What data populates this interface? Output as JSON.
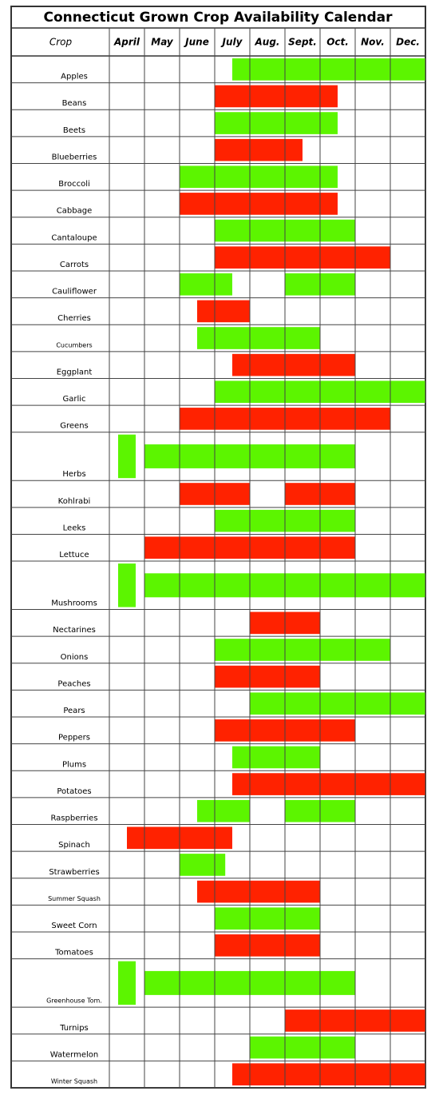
{
  "title": "Connecticut Grown Crop Availability Calendar",
  "header": {
    "crop": "Crop",
    "months": [
      "April",
      "May",
      "June",
      "July",
      "Aug.",
      "Sept.",
      "Oct.",
      "Nov.",
      "Dec."
    ]
  },
  "rows": [
    {
      "name": "Apples",
      "color": "#5cf500",
      "spans": [
        [
          3.5,
          9
        ]
      ]
    },
    {
      "name": "Beans",
      "color": "#ff2200",
      "spans": [
        [
          3,
          6.5
        ]
      ]
    },
    {
      "name": "Beets",
      "color": "#5cf500",
      "spans": [
        [
          3,
          6.5
        ]
      ]
    },
    {
      "name": "Blueberries",
      "color": "#ff2200",
      "spans": [
        [
          3,
          5.5
        ]
      ]
    },
    {
      "name": "Broccoli",
      "color": "#5cf500",
      "spans": [
        [
          2,
          6.5
        ]
      ]
    },
    {
      "name": "Cabbage",
      "color": "#ff2200",
      "spans": [
        [
          2,
          6.5
        ]
      ]
    },
    {
      "name": "Cantaloupe",
      "color": "#5cf500",
      "spans": [
        [
          3,
          7
        ]
      ]
    },
    {
      "name": "Carrots",
      "color": "#ff2200",
      "spans": [
        [
          3,
          8
        ]
      ]
    },
    {
      "name": "Cauliflower",
      "color": "#5cf500",
      "spans": [
        [
          2,
          3.5
        ],
        [
          5,
          7
        ]
      ]
    },
    {
      "name": "Cherries",
      "color": "#ff2200",
      "spans": [
        [
          2.5,
          4
        ]
      ]
    },
    {
      "name": "Cucumbers",
      "color": "#5cf500",
      "spans": [
        [
          2.5,
          6
        ]
      ]
    },
    {
      "name": "Eggplant",
      "color": "#ff2200",
      "spans": [
        [
          3.5,
          7
        ]
      ]
    },
    {
      "name": "Garlic",
      "color": "#5cf500",
      "spans": [
        [
          3,
          9
        ]
      ]
    },
    {
      "name": "Greens",
      "color": "#ff2200",
      "spans": [
        [
          2,
          8
        ]
      ]
    },
    {
      "name": "Herbs",
      "color": "#5cf500",
      "spans": [
        [
          0.25,
          0.75
        ],
        [
          1,
          7
        ]
      ]
    },
    {
      "name": "Kohlrabi",
      "color": "#ff2200",
      "spans": [
        [
          2,
          4
        ],
        [
          5,
          7
        ]
      ]
    },
    {
      "name": "Leeks",
      "color": "#5cf500",
      "spans": [
        [
          3,
          7
        ]
      ]
    },
    {
      "name": "Lettuce",
      "color": "#ff2200",
      "spans": [
        [
          1,
          7
        ]
      ]
    },
    {
      "name": "Mushrooms",
      "color": "#5cf500",
      "spans": [
        [
          0.25,
          0.75
        ],
        [
          1,
          9
        ]
      ]
    },
    {
      "name": "Nectarines",
      "color": "#ff2200",
      "spans": [
        [
          4,
          6
        ]
      ]
    },
    {
      "name": "Onions",
      "color": "#5cf500",
      "spans": [
        [
          3,
          8
        ]
      ]
    },
    {
      "name": "Peaches",
      "color": "#ff2200",
      "spans": [
        [
          3,
          6
        ]
      ]
    },
    {
      "name": "Pears",
      "color": "#5cf500",
      "spans": [
        [
          4,
          9
        ]
      ]
    },
    {
      "name": "Peppers",
      "color": "#ff2200",
      "spans": [
        [
          3,
          7
        ]
      ]
    },
    {
      "name": "Plums",
      "color": "#5cf500",
      "spans": [
        [
          3.5,
          6
        ]
      ]
    },
    {
      "name": "Potatoes",
      "color": "#ff2200",
      "spans": [
        [
          3.5,
          9
        ]
      ]
    },
    {
      "name": "Raspberries",
      "color": "#5cf500",
      "spans": [
        [
          2.5,
          4
        ],
        [
          5,
          7
        ]
      ]
    },
    {
      "name": "Spinach",
      "color": "#ff2200",
      "spans": [
        [
          0.5,
          3.5
        ]
      ]
    },
    {
      "name": "Strawberries",
      "color": "#5cf500",
      "spans": [
        [
          2,
          3.3
        ]
      ]
    },
    {
      "name": "Summer Squash",
      "color": "#ff2200",
      "spans": [
        [
          2.5,
          6
        ]
      ]
    },
    {
      "name": "Sweet Corn",
      "color": "#5cf500",
      "spans": [
        [
          3,
          6
        ]
      ]
    },
    {
      "name": "Tomatoes",
      "color": "#ff2200",
      "spans": [
        [
          3,
          6
        ]
      ]
    },
    {
      "name": "Greenhouse Tom.",
      "color": "#5cf500",
      "spans": [
        [
          0.25,
          0.75
        ],
        [
          1,
          7
        ]
      ]
    },
    {
      "name": "Turnips",
      "color": "#ff2200",
      "spans": [
        [
          5,
          9
        ]
      ]
    },
    {
      "name": "Watermelon",
      "color": "#5cf500",
      "spans": [
        [
          4,
          7
        ]
      ]
    },
    {
      "name": "Winter Squash",
      "color": "#ff2200",
      "spans": [
        [
          3.5,
          9
        ]
      ]
    }
  ]
}
